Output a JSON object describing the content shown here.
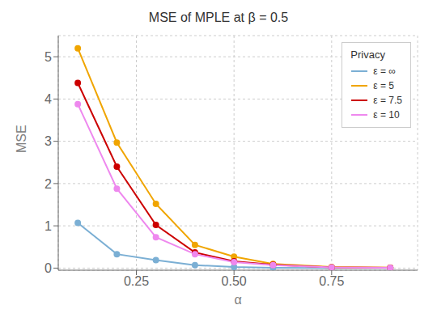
{
  "chart_data": {
    "type": "line",
    "title": "MSE of MPLE at β = 0.5",
    "x_label": "α",
    "y_label": "MSE",
    "legend_title": "Privacy",
    "x": [
      0.1,
      0.2,
      0.3,
      0.4,
      0.5,
      0.6,
      0.75,
      0.9
    ],
    "series": [
      {
        "name": "ε = ∞",
        "color": "#7BAFD4",
        "marker": "circle",
        "values": [
          1.07,
          0.33,
          0.19,
          0.07,
          0.025,
          0.008,
          0.003,
          0.002
        ]
      },
      {
        "name": "ε = 5",
        "color": "#F0A500",
        "marker": "circle",
        "values": [
          5.2,
          2.97,
          1.52,
          0.55,
          0.27,
          0.1,
          0.025,
          0.01
        ]
      },
      {
        "name": "ε = 7.5",
        "color": "#CC0000",
        "marker": "circle",
        "values": [
          4.38,
          2.4,
          1.02,
          0.37,
          0.16,
          0.08,
          0.018,
          0.007
        ]
      },
      {
        "name": "ε = 10",
        "color": "#EE88EE",
        "marker": "circle",
        "values": [
          3.88,
          1.88,
          0.73,
          0.33,
          0.14,
          0.07,
          0.018,
          0.006
        ]
      }
    ],
    "xlim": [
      0.05,
      0.97
    ],
    "ylim": [
      -0.05,
      5.5
    ],
    "xticks": [
      0.25,
      {
        "value": 0.5,
        "label": "0.50"
      },
      0.75
    ],
    "yticks": [
      0,
      1,
      2,
      3,
      4,
      5
    ],
    "grid": true,
    "legend": "upper right"
  }
}
